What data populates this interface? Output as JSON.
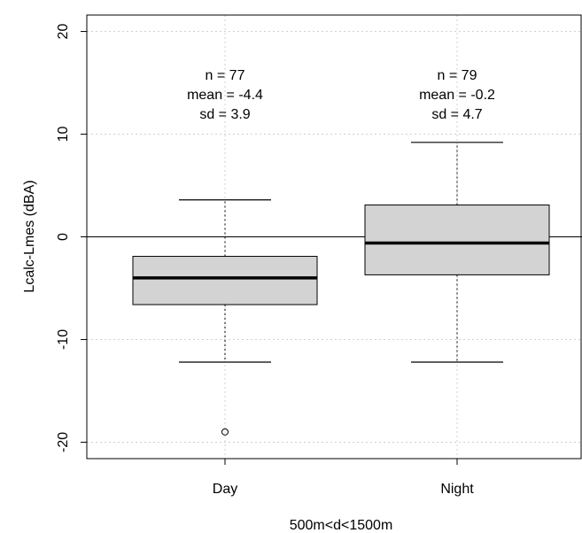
{
  "chart_data": {
    "type": "boxplot",
    "xlabel": "500m<d<1500m",
    "ylabel": "Lcalc-Lmes (dBA)",
    "ylim": [
      -21.6,
      21.6
    ],
    "yticks": [
      -20,
      -10,
      0,
      10,
      20
    ],
    "grid": true,
    "reference_line": 0,
    "colors": {
      "box_fill": "#d3d3d3",
      "grid": "#d0d0d0",
      "stroke": "#000000"
    },
    "groups": [
      {
        "category": "Day",
        "whisker_low": -12.2,
        "q1": -6.6,
        "median": -4.0,
        "q3": -1.9,
        "whisker_high": 3.6,
        "outliers": [
          -19.0
        ],
        "annotation": [
          "n = 77",
          "mean = -4.4",
          "sd = 3.9"
        ]
      },
      {
        "category": "Night",
        "whisker_low": -12.2,
        "q1": -3.7,
        "median": -0.6,
        "q3": 3.1,
        "whisker_high": 9.2,
        "outliers": [],
        "annotation": [
          "n = 79",
          "mean = -0.2",
          "sd = 4.7"
        ]
      }
    ]
  }
}
